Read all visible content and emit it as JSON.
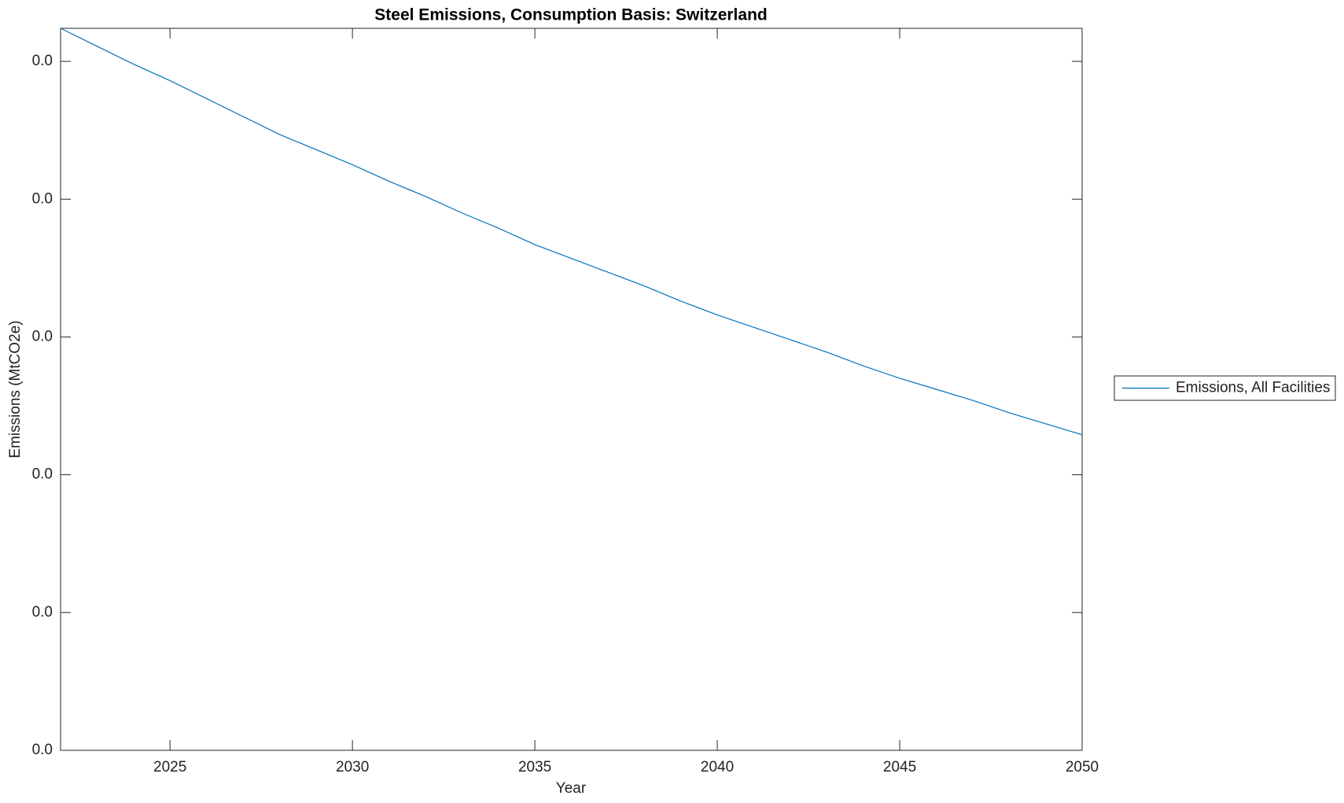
{
  "chart_data": {
    "type": "line",
    "title": "Steel Emissions, Consumption Basis: Switzerland",
    "x_label": "Year",
    "y_label": "Emissions (MtCO2e)",
    "x": [
      2022,
      2023,
      2024,
      2025,
      2026,
      2027,
      2028,
      2029,
      2030,
      2031,
      2032,
      2033,
      2034,
      2035,
      2036,
      2037,
      2038,
      2039,
      2040,
      2041,
      2042,
      2043,
      2044,
      2045,
      2046,
      2047,
      2048,
      2049,
      2050
    ],
    "series": [
      {
        "name": "Emissions, All Facilities",
        "color": "#0072bd",
        "values": [
          0.0524,
          0.0511,
          0.0498,
          0.0486,
          0.0473,
          0.046,
          0.0447,
          0.0436,
          0.0425,
          0.0413,
          0.0402,
          0.039,
          0.0379,
          0.0367,
          0.0357,
          0.0347,
          0.0337,
          0.0326,
          0.0316,
          0.0307,
          0.0298,
          0.0289,
          0.0279,
          0.027,
          0.0262,
          0.0254,
          0.0245,
          0.0237,
          0.0229
        ]
      }
    ],
    "xlim": [
      2022,
      2050
    ],
    "xticks": [
      2025,
      2030,
      2035,
      2040,
      2045,
      2050
    ],
    "ylim": [
      0,
      0.0524
    ],
    "yticks": [
      {
        "value": 0,
        "label": "0.0"
      },
      {
        "value": 0.01,
        "label": "0.0"
      },
      {
        "value": 0.02,
        "label": "0.0"
      },
      {
        "value": 0.03,
        "label": "0.0"
      },
      {
        "value": 0.04,
        "label": "0.0"
      },
      {
        "value": 0.05,
        "label": "0.0"
      }
    ],
    "grid": false,
    "legend_position": "right"
  }
}
